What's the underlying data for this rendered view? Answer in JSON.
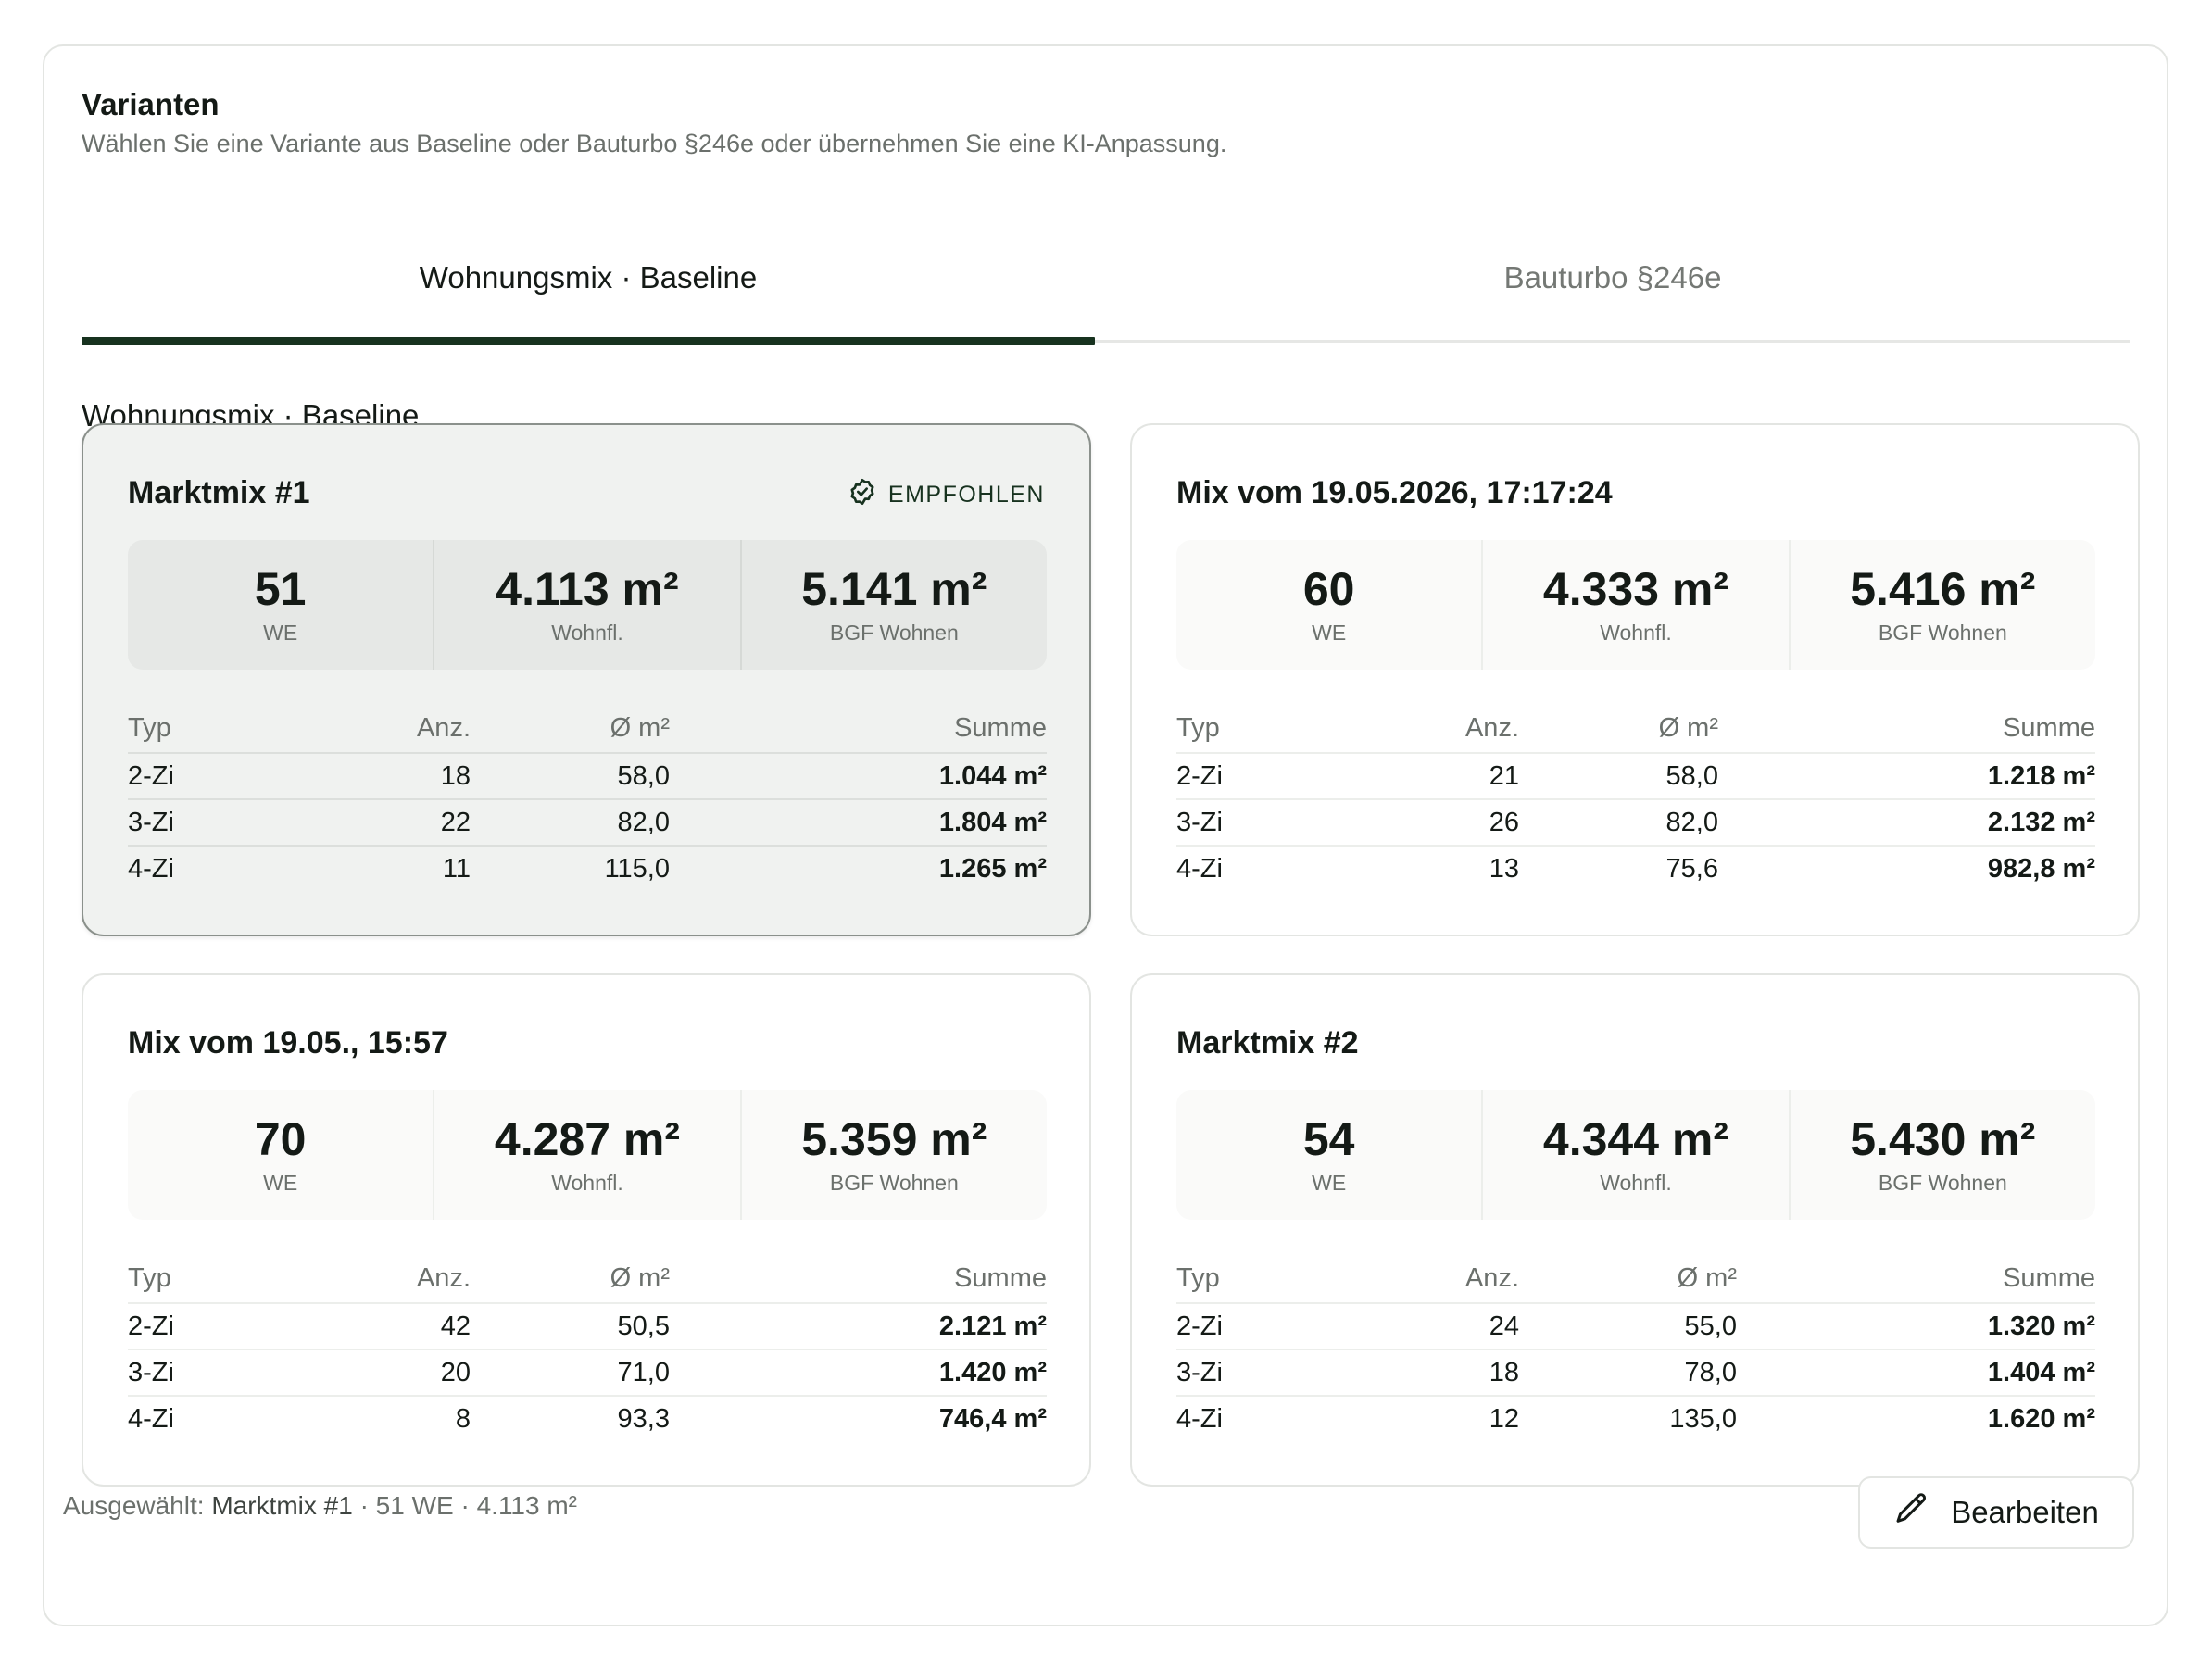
{
  "header": {
    "title": "Varianten",
    "subtitle": "Wählen Sie eine Variante aus Baseline oder Bauturbo §246e oder übernehmen Sie eine KI-Anpassung."
  },
  "tabs": [
    {
      "label": "Wohnungsmix · Baseline",
      "active": true
    },
    {
      "label": "Bauturbo §246e",
      "active": false
    }
  ],
  "section_title": "Wohnungsmix · Baseline",
  "table_headers": {
    "typ": "Typ",
    "anz": "Anz.",
    "avg": "Ø m²",
    "sum": "Summe"
  },
  "cards": [
    {
      "name": "Marktmix #1",
      "selected": true,
      "badge": "EMPFOHLEN",
      "stats": [
        {
          "value": "51",
          "label": "WE"
        },
        {
          "value": "4.113 m²",
          "label": "Wohnfl."
        },
        {
          "value": "5.141 m²",
          "label": "BGF Wohnen"
        }
      ],
      "rows": [
        {
          "typ": "2-Zi",
          "anz": "18",
          "avg": "58,0",
          "sum": "1.044 m²"
        },
        {
          "typ": "3-Zi",
          "anz": "22",
          "avg": "82,0",
          "sum": "1.804 m²"
        },
        {
          "typ": "4-Zi",
          "anz": "11",
          "avg": "115,0",
          "sum": "1.265 m²"
        }
      ]
    },
    {
      "name": "Mix vom 19.05.2026, 17:17:24",
      "selected": false,
      "badge": "",
      "stats": [
        {
          "value": "60",
          "label": "WE"
        },
        {
          "value": "4.333 m²",
          "label": "Wohnfl."
        },
        {
          "value": "5.416 m²",
          "label": "BGF Wohnen"
        }
      ],
      "rows": [
        {
          "typ": "2-Zi",
          "anz": "21",
          "avg": "58,0",
          "sum": "1.218 m²"
        },
        {
          "typ": "3-Zi",
          "anz": "26",
          "avg": "82,0",
          "sum": "2.132 m²"
        },
        {
          "typ": "4-Zi",
          "anz": "13",
          "avg": "75,6",
          "sum": "982,8 m²"
        }
      ]
    },
    {
      "name": "Mix vom 19.05., 15:57",
      "selected": false,
      "badge": "",
      "stats": [
        {
          "value": "70",
          "label": "WE"
        },
        {
          "value": "4.287 m²",
          "label": "Wohnfl."
        },
        {
          "value": "5.359 m²",
          "label": "BGF Wohnen"
        }
      ],
      "rows": [
        {
          "typ": "2-Zi",
          "anz": "42",
          "avg": "50,5",
          "sum": "2.121 m²"
        },
        {
          "typ": "3-Zi",
          "anz": "20",
          "avg": "71,0",
          "sum": "1.420 m²"
        },
        {
          "typ": "4-Zi",
          "anz": "8",
          "avg": "93,3",
          "sum": "746,4 m²"
        }
      ]
    },
    {
      "name": "Marktmix #2",
      "selected": false,
      "badge": "",
      "stats": [
        {
          "value": "54",
          "label": "WE"
        },
        {
          "value": "4.344 m²",
          "label": "Wohnfl."
        },
        {
          "value": "5.430 m²",
          "label": "BGF Wohnen"
        }
      ],
      "rows": [
        {
          "typ": "2-Zi",
          "anz": "24",
          "avg": "55,0",
          "sum": "1.320 m²"
        },
        {
          "typ": "3-Zi",
          "anz": "18",
          "avg": "78,0",
          "sum": "1.404 m²"
        },
        {
          "typ": "4-Zi",
          "anz": "12",
          "avg": "135,0",
          "sum": "1.620 m²"
        }
      ]
    }
  ],
  "footer": {
    "prefix": "Ausgewählt: ",
    "selected_name": "Marktmix #1",
    "details": " · 51 WE · 4.113 m²",
    "edit_label": "Bearbeiten",
    "edit_icon": "pencil-icon"
  },
  "colors": {
    "accent": "#17321f",
    "selected_card_bg": "#f0f2f0"
  }
}
